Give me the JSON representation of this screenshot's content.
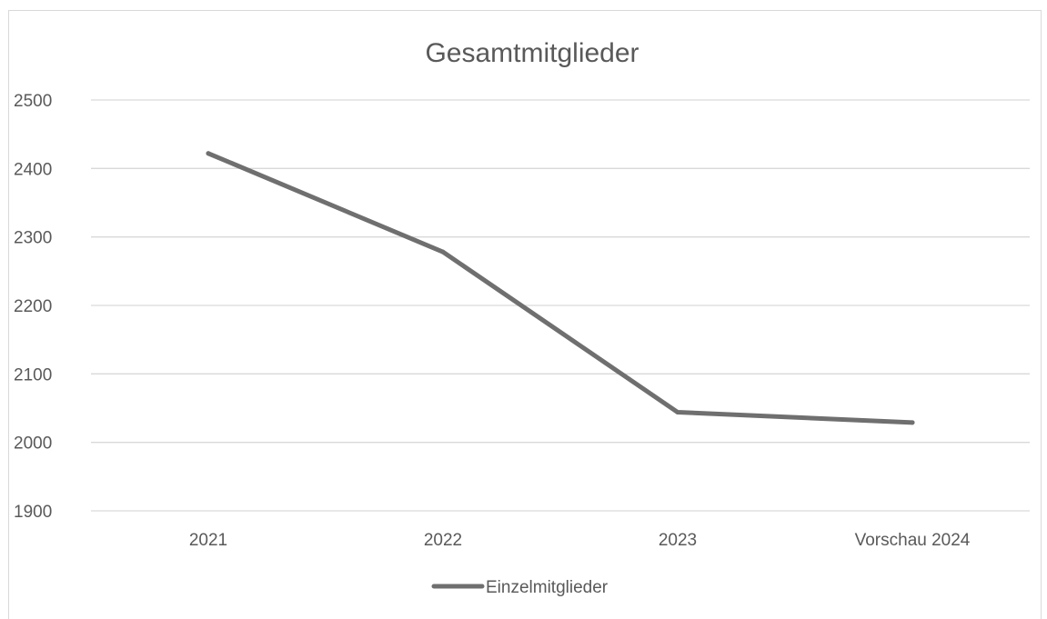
{
  "chart_data": {
    "type": "line",
    "title": "Gesamtmitglieder",
    "categories": [
      "2021",
      "2022",
      "2023",
      "Vorschau 2024"
    ],
    "series": [
      {
        "name": "Einzelmitglieder",
        "values": [
          2422,
          2278,
          2044,
          2029
        ],
        "color": "#6f6f6f"
      }
    ],
    "ylim": [
      1900,
      2500
    ],
    "yticks": [
      "1900",
      "2000",
      "2100",
      "2200",
      "2300",
      "2400",
      "2500"
    ],
    "grid": true,
    "legend": "bottom"
  }
}
